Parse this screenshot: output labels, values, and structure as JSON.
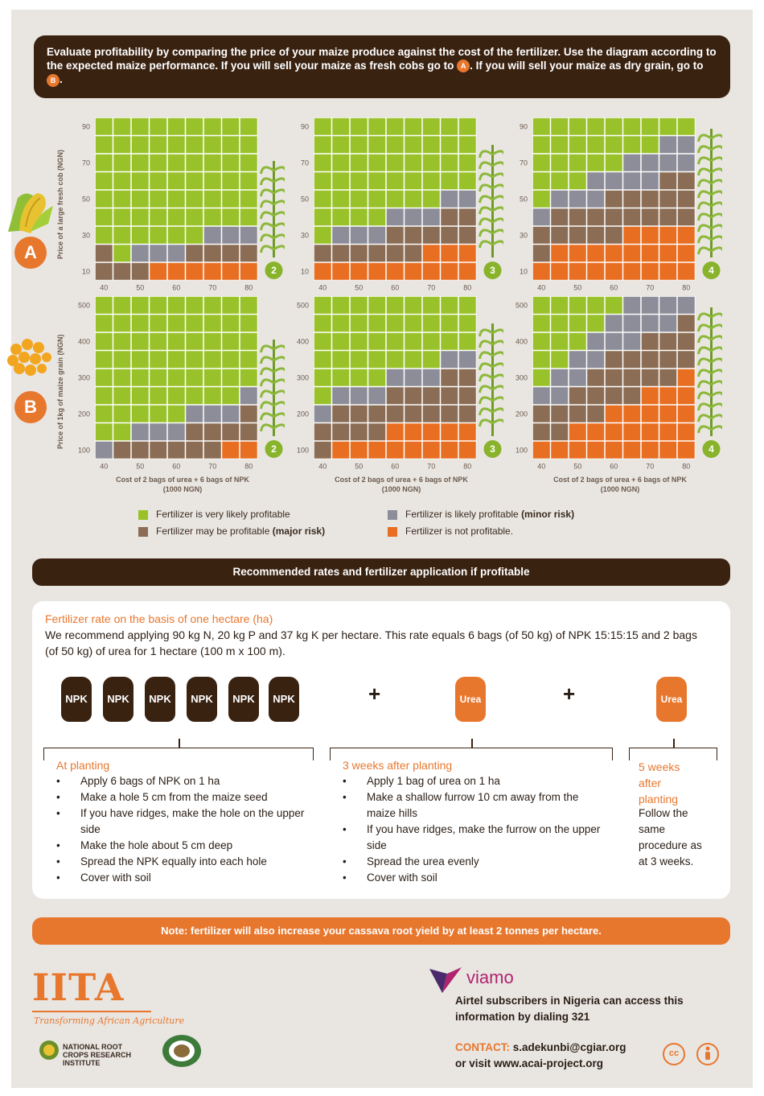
{
  "intro": {
    "text_part1": "Evaluate profitability by comparing the price of your maize produce against the cost of the fertilizer. Use the diagram according to the expected maize performance. If you will sell your maize as fresh cobs go to",
    "badge_a": "A",
    "text_part2": ". If you will sell your maize as dry grain, go to",
    "badge_b": "B",
    "text_part3": "."
  },
  "rows": {
    "a": {
      "letter": "A",
      "ylabel": "Price of a large fresh cob (NGN)"
    },
    "b": {
      "letter": "B",
      "ylabel": "Price of 1kg of maize grain (NGN)"
    }
  },
  "xlabel": {
    "line1": "Cost of 2 bags of urea + 6 bags of NPK",
    "line2": "(1000 NGN)"
  },
  "colors": {
    "green": "#99c22a",
    "gray": "#8c8d98",
    "brown": "#8b6d55",
    "orange": "#e86e22",
    "dark": "#3a2211",
    "accent": "#e8772e"
  },
  "chart_data": [
    {
      "type": "heatmap",
      "row": "A",
      "performance": "2",
      "x_ticks": [
        "40",
        "50",
        "60",
        "70",
        "80"
      ],
      "y_ticks": [
        "90",
        "70",
        "50",
        "30",
        "10"
      ],
      "xlim": [
        40,
        80
      ],
      "ylim": [
        10,
        90
      ],
      "cells": [
        "GGGGGGGGG",
        "GGGGGGGGG",
        "GGGGGGGGG",
        "GGGGGGGGG",
        "GGGGGGGGG",
        "GGGGGGGGG",
        "GGGGGGKKK",
        "BGKKKBBBB",
        "BBBOOOOOO"
      ]
    },
    {
      "type": "heatmap",
      "row": "A",
      "performance": "3",
      "x_ticks": [
        "40",
        "50",
        "60",
        "70",
        "80"
      ],
      "y_ticks": [
        "90",
        "70",
        "50",
        "30",
        "10"
      ],
      "xlim": [
        40,
        80
      ],
      "ylim": [
        10,
        90
      ],
      "cells": [
        "GGGGGGGGG",
        "GGGGGGGGG",
        "GGGGGGGGG",
        "GGGGGGGGG",
        "GGGGGGGKK",
        "GGGGKKKBB",
        "GKKKBBBBB",
        "BBBBBBOOO",
        "OOOOOOOOO"
      ]
    },
    {
      "type": "heatmap",
      "row": "A",
      "performance": "4",
      "x_ticks": [
        "40",
        "50",
        "60",
        "70",
        "80"
      ],
      "y_ticks": [
        "90",
        "70",
        "50",
        "30",
        "10"
      ],
      "xlim": [
        40,
        80
      ],
      "ylim": [
        10,
        90
      ],
      "cells": [
        "GGGGGGGGG",
        "GGGGGGGKK",
        "GGGGGKKKK",
        "GGGKKKKBB",
        "GKKKBBBBB",
        "KBBBBBBBB",
        "BBBBBOOOO",
        "BOOOOOOOO",
        "OOOOOOOOO"
      ]
    },
    {
      "type": "heatmap",
      "row": "B",
      "performance": "2",
      "x_ticks": [
        "40",
        "50",
        "60",
        "70",
        "80"
      ],
      "y_ticks": [
        "500",
        "400",
        "300",
        "200",
        "100"
      ],
      "xlim": [
        40,
        80
      ],
      "ylim": [
        100,
        500
      ],
      "cells": [
        "GGGGGGGGG",
        "GGGGGGGGG",
        "GGGGGGGGG",
        "GGGGGGGGG",
        "GGGGGGGGG",
        "GGGGGGGGK",
        "GGGGGKKKB",
        "GGKKKBBBB",
        "KBBBBBBOO"
      ]
    },
    {
      "type": "heatmap",
      "row": "B",
      "performance": "3",
      "x_ticks": [
        "40",
        "50",
        "60",
        "70",
        "80"
      ],
      "y_ticks": [
        "500",
        "400",
        "300",
        "200",
        "100"
      ],
      "xlim": [
        40,
        80
      ],
      "ylim": [
        100,
        500
      ],
      "cells": [
        "GGGGGGGGG",
        "GGGGGGGGG",
        "GGGGGGGGG",
        "GGGGGGGKK",
        "GGGGKKKBB",
        "GKKKBBBBB",
        "KBBBBBBBB",
        "BBBBOOOOO",
        "BOOOOOOOO"
      ]
    },
    {
      "type": "heatmap",
      "row": "B",
      "performance": "4",
      "x_ticks": [
        "40",
        "50",
        "60",
        "70",
        "80"
      ],
      "y_ticks": [
        "500",
        "400",
        "300",
        "200",
        "100"
      ],
      "xlim": [
        40,
        80
      ],
      "ylim": [
        100,
        500
      ],
      "cells": [
        "GGGGGKKKK",
        "GGGGKKKKB",
        "GGGKKKBBB",
        "GGKKBBBBB",
        "GKKBBBBBO",
        "KKBBBBOOO",
        "BBBBOOOOO",
        "BBOOOOOOO",
        "OOOOOOOOO"
      ]
    }
  ],
  "legend": {
    "green": "Fertilizer is very likely profitable",
    "gray_main": "Fertilizer is likely profitable",
    "gray_extra": "(minor risk)",
    "brown_main": "Fertilizer may be profitable",
    "brown_extra": "(major risk)",
    "orange": "Fertilizer is not profitable."
  },
  "rec_band": "Recommended rates and fertilizer application if profitable",
  "card": {
    "title": "Fertilizer rate on the basis of one hectare (ha)",
    "text": "We recommend applying 90 kg N, 20 kg P and 37 kg K per hectare. This rate equals 6 bags (of 50 kg) of NPK 15:15:15 and 2 bags (of 50 kg) of urea for 1 hectare (100 m x 100 m).",
    "npk_label": "NPK",
    "urea_label": "Urea",
    "plus": "+",
    "planting": {
      "title": "At planting",
      "steps": [
        "Apply 6 bags of NPK on 1 ha",
        "Make a hole 5 cm from the maize seed",
        "If you have ridges, make the hole on the upper side",
        "Make the hole about 5 cm deep",
        "Spread the NPK equally into each hole",
        "Cover with soil"
      ]
    },
    "three_weeks": {
      "title": "3 weeks after planting",
      "steps": [
        "Apply 1 bag of urea on 1 ha",
        "Make a shallow furrow 10 cm away from the maize hills",
        "If you have ridges, make the furrow on the upper side",
        "Spread the urea evenly",
        "Cover with soil"
      ]
    },
    "five_weeks": {
      "title": "5 weeks after planting",
      "text": "Follow the same procedure as at 3 weeks."
    }
  },
  "note": "Note: fertilizer will also increase your cassava root yield by at least 2 tonnes per hectare.",
  "footer": {
    "iita": "IITA",
    "iita_tag": "Transforming African Agriculture",
    "nrcri": "NATIONAL ROOT CROPS RESEARCH INSTITUTE",
    "viamo": "viamo",
    "viamo_text": "Airtel subscribers in Nigeria can access this information by dialing 321",
    "contact_label": "CONTACT:",
    "contact_email": "s.adekunbi@cgiar.org",
    "contact_visit": "or visit www.acai-project.org",
    "cc": "cc"
  }
}
